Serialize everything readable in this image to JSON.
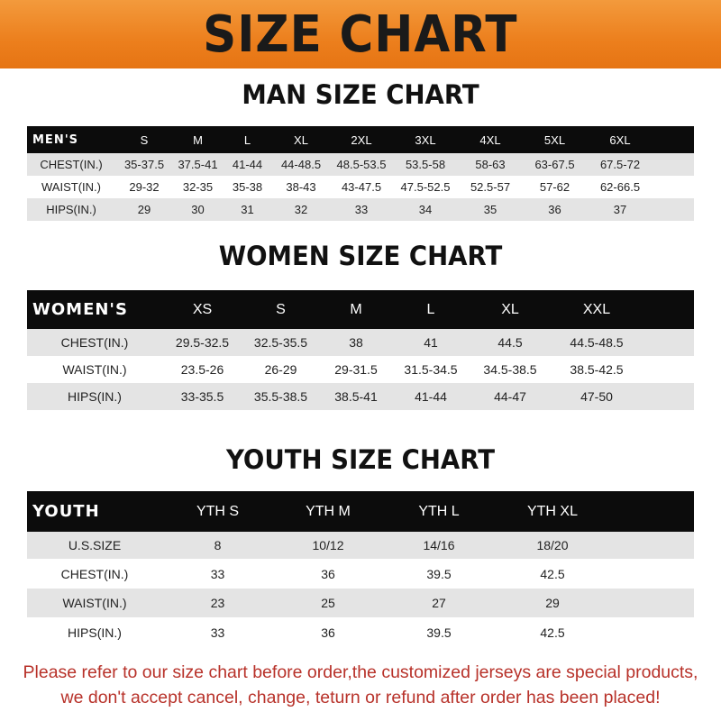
{
  "banner_title": "SIZE CHART",
  "men": {
    "title": "MAN SIZE CHART",
    "header": "MEN'S",
    "columns": [
      "S",
      "M",
      "L",
      "XL",
      "2XL",
      "3XL",
      "4XL",
      "5XL",
      "6XL"
    ],
    "rows": [
      {
        "label": "CHEST(IN.)",
        "values": [
          "35-37.5",
          "37.5-41",
          "41-44",
          "44-48.5",
          "48.5-53.5",
          "53.5-58",
          "58-63",
          "63-67.5",
          "67.5-72"
        ]
      },
      {
        "label": "WAIST(IN.)",
        "values": [
          "29-32",
          "32-35",
          "35-38",
          "38-43",
          "43-47.5",
          "47.5-52.5",
          "52.5-57",
          "57-62",
          "62-66.5"
        ]
      },
      {
        "label": "HIPS(IN.)",
        "values": [
          "29",
          "30",
          "31",
          "32",
          "33",
          "34",
          "35",
          "36",
          "37"
        ]
      }
    ]
  },
  "women": {
    "title": "WOMEN SIZE CHART",
    "header": "WOMEN'S",
    "columns": [
      "XS",
      "S",
      "M",
      "L",
      "XL",
      "XXL"
    ],
    "rows": [
      {
        "label": "CHEST(IN.)",
        "values": [
          "29.5-32.5",
          "32.5-35.5",
          "38",
          "41",
          "44.5",
          "44.5-48.5"
        ]
      },
      {
        "label": "WAIST(IN.)",
        "values": [
          "23.5-26",
          "26-29",
          "29-31.5",
          "31.5-34.5",
          "34.5-38.5",
          "38.5-42.5"
        ]
      },
      {
        "label": "HIPS(IN.)",
        "values": [
          "33-35.5",
          "35.5-38.5",
          "38.5-41",
          "41-44",
          "44-47",
          "47-50"
        ]
      }
    ]
  },
  "youth": {
    "title": "YOUTH SIZE CHART",
    "header": "YOUTH",
    "columns": [
      "YTH S",
      "YTH M",
      "YTH L",
      "YTH XL"
    ],
    "rows": [
      {
        "label": "U.S.SIZE",
        "values": [
          "8",
          "10/12",
          "14/16",
          "18/20"
        ]
      },
      {
        "label": "CHEST(IN.)",
        "values": [
          "33",
          "36",
          "39.5",
          "42.5"
        ]
      },
      {
        "label": "WAIST(IN.)",
        "values": [
          "23",
          "25",
          "27",
          "29"
        ]
      },
      {
        "label": "HIPS(IN.)",
        "values": [
          "33",
          "36",
          "39.5",
          "42.5"
        ]
      }
    ]
  },
  "notice": {
    "line1": "Please refer to our size chart before order,the customized jerseys are special products,",
    "line2": "we don't accept cancel, change, teturn or refund after order has been placed!"
  },
  "colors": {
    "banner": "#ec7f1d",
    "header_bg": "#0c0c0c",
    "row_alt": "#e4e4e4",
    "notice": "#b8322a"
  }
}
